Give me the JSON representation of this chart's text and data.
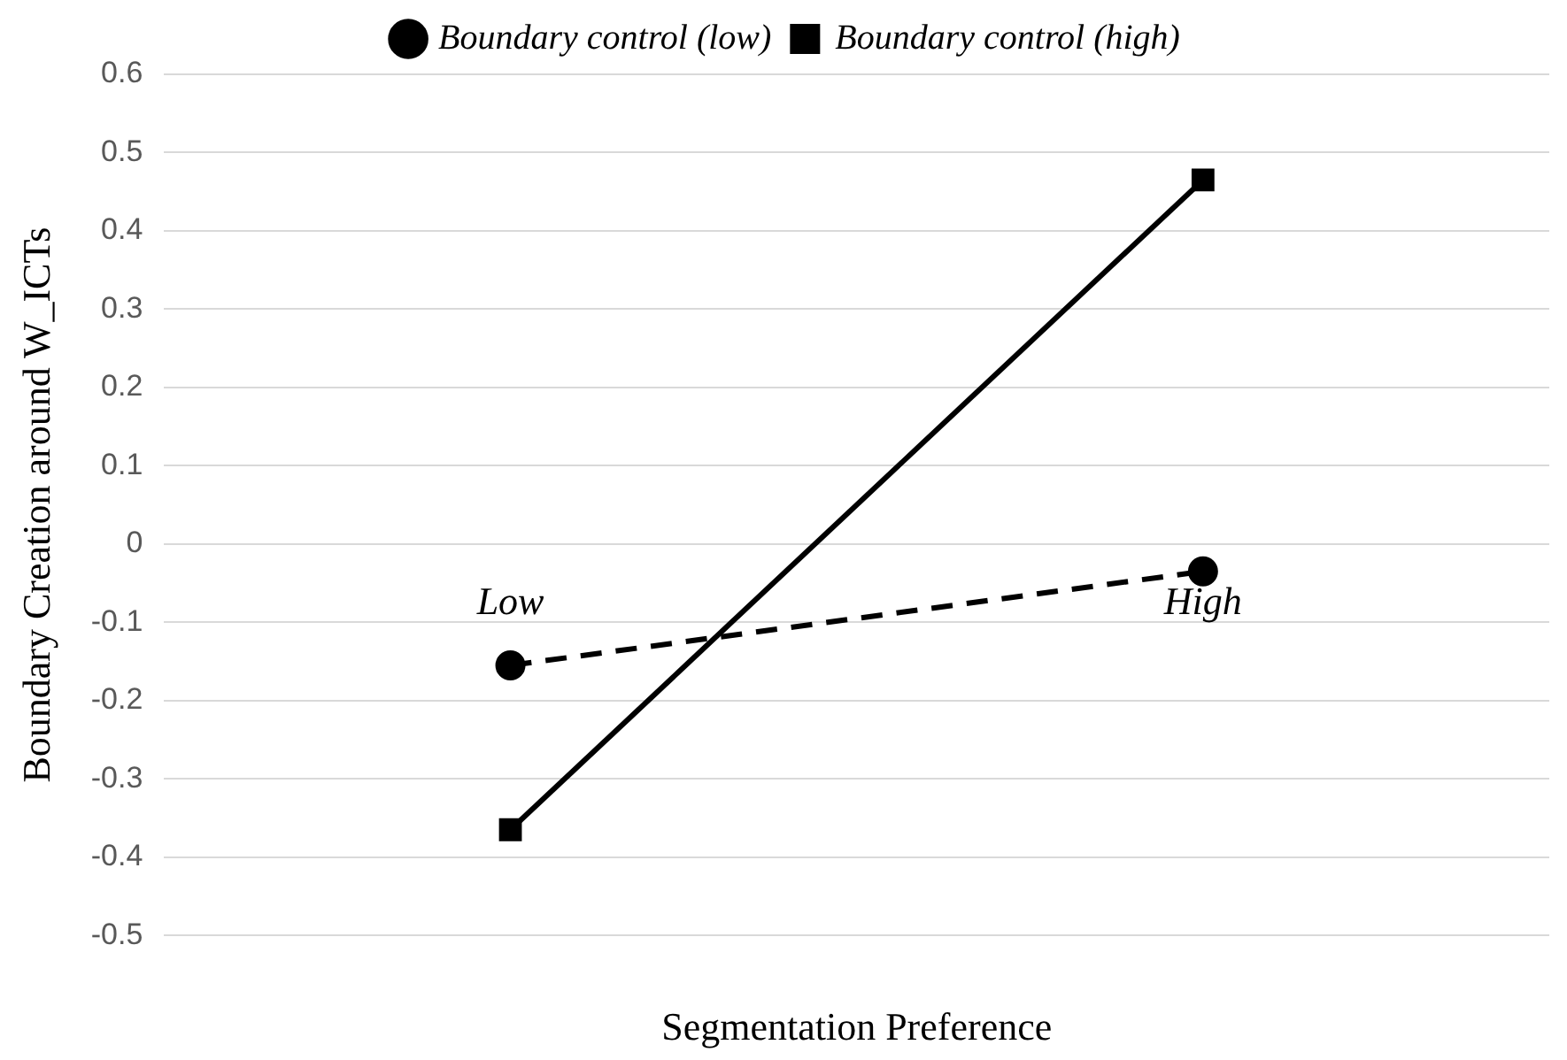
{
  "chart_data": {
    "type": "line",
    "xlabel": "Segmentation Preference",
    "ylabel": "Boundary Creation around W_ICTs",
    "categories": [
      "Low",
      "High"
    ],
    "series": [
      {
        "name": "Boundary control (low)",
        "color": "#000000",
        "values": [
          -0.155,
          -0.035
        ],
        "marker": "circle",
        "line_style": "dashed"
      },
      {
        "name": "Boundary control (high)",
        "color": "#000000",
        "values": [
          -0.365,
          0.465
        ],
        "marker": "square",
        "line_style": "solid"
      }
    ],
    "ylim": [
      -0.5,
      0.6
    ],
    "yticks": [
      -0.5,
      -0.4,
      -0.3,
      -0.2,
      -0.1,
      0,
      0.1,
      0.2,
      0.3,
      0.4,
      0.5,
      0.6
    ],
    "grid": "y",
    "legend": "top",
    "tick_labels": "y"
  }
}
